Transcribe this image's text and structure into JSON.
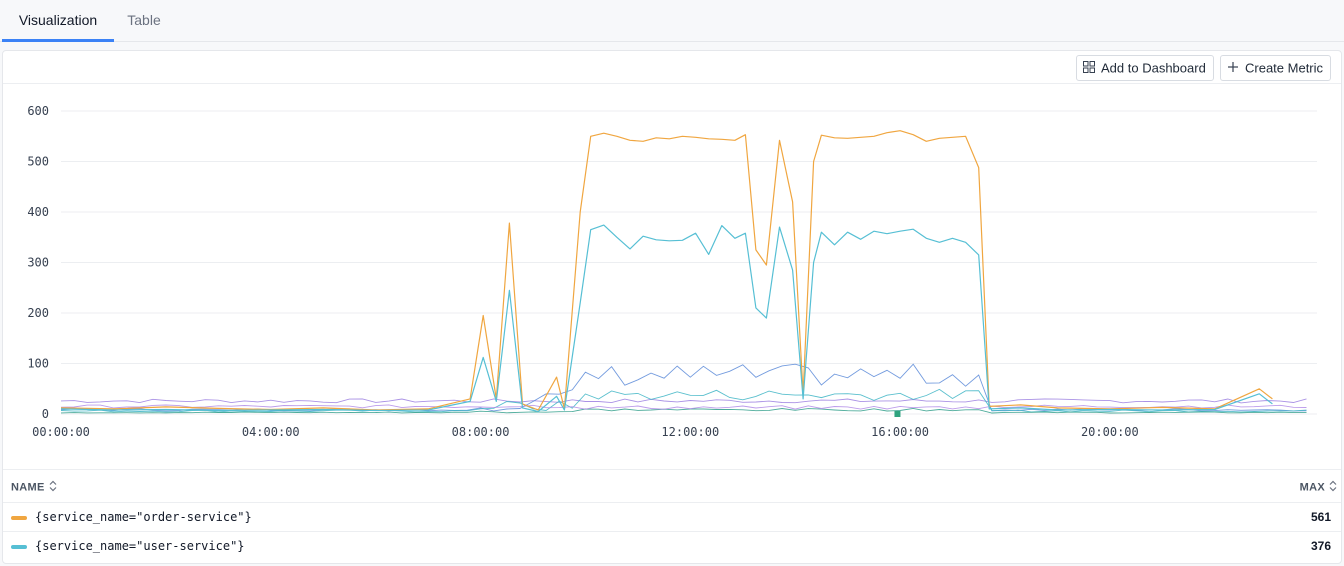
{
  "tabs": [
    {
      "label": "Visualization",
      "active": true
    },
    {
      "label": "Table",
      "active": false
    }
  ],
  "toolbar": {
    "add_dashboard_label": "Add to Dashboard",
    "add_dashboard_icon": "dashboard-grid-icon",
    "create_metric_label": "Create Metric",
    "create_metric_icon": "plus-icon"
  },
  "chart_data": {
    "type": "line",
    "title": "",
    "xlabel": "",
    "ylabel": "",
    "ylim": [
      0,
      600
    ],
    "xlim": [
      0,
      23.95
    ],
    "grid": true,
    "yticks": [
      {
        "v": 0,
        "label": "0"
      },
      {
        "v": 100,
        "label": "100"
      },
      {
        "v": 200,
        "label": "200"
      },
      {
        "v": 300,
        "label": "300"
      },
      {
        "v": 400,
        "label": "400"
      },
      {
        "v": 500,
        "label": "500"
      },
      {
        "v": 600,
        "label": "600"
      }
    ],
    "xticks": [
      {
        "v": 0,
        "label": "00:00:00"
      },
      {
        "v": 4,
        "label": "04:00:00"
      },
      {
        "v": 8,
        "label": "08:00:00"
      },
      {
        "v": 12,
        "label": "12:00:00"
      },
      {
        "v": 16,
        "label": "16:00:00"
      },
      {
        "v": 20,
        "label": "20:00:00"
      }
    ],
    "series": [
      {
        "name": "{service_name=\"order-service\"}",
        "color": "#f0a640",
        "width": 1.2,
        "max": "561",
        "points": [
          [
            0,
            12
          ],
          [
            1,
            10
          ],
          [
            2,
            14
          ],
          [
            3,
            11
          ],
          [
            4,
            9
          ],
          [
            5,
            12
          ],
          [
            6,
            8
          ],
          [
            7,
            10
          ],
          [
            7.8,
            30
          ],
          [
            8.05,
            195
          ],
          [
            8.3,
            30
          ],
          [
            8.55,
            378
          ],
          [
            8.8,
            20
          ],
          [
            9.1,
            8
          ],
          [
            9.45,
            73
          ],
          [
            9.6,
            10
          ],
          [
            9.9,
            400
          ],
          [
            10.1,
            550
          ],
          [
            10.35,
            556
          ],
          [
            10.6,
            550
          ],
          [
            10.85,
            542
          ],
          [
            11.1,
            540
          ],
          [
            11.35,
            547
          ],
          [
            11.6,
            545
          ],
          [
            11.85,
            550
          ],
          [
            12.1,
            548
          ],
          [
            12.35,
            545
          ],
          [
            12.6,
            544
          ],
          [
            12.85,
            542
          ],
          [
            13.05,
            553
          ],
          [
            13.25,
            325
          ],
          [
            13.45,
            295
          ],
          [
            13.7,
            542
          ],
          [
            13.95,
            420
          ],
          [
            14.15,
            40
          ],
          [
            14.35,
            500
          ],
          [
            14.5,
            552
          ],
          [
            14.75,
            547
          ],
          [
            15.0,
            546
          ],
          [
            15.25,
            548
          ],
          [
            15.5,
            550
          ],
          [
            15.75,
            557
          ],
          [
            16.0,
            561
          ],
          [
            16.25,
            553
          ],
          [
            16.5,
            540
          ],
          [
            16.75,
            546
          ],
          [
            17.0,
            548
          ],
          [
            17.25,
            550
          ],
          [
            17.5,
            488
          ],
          [
            17.7,
            15
          ],
          [
            18.3,
            18
          ],
          [
            19,
            12
          ],
          [
            20,
            10
          ],
          [
            21,
            13
          ],
          [
            22,
            10
          ],
          [
            22.85,
            50
          ],
          [
            23.1,
            30
          ]
        ]
      },
      {
        "name": "{service_name=\"user-service\"}",
        "color": "#56bfd4",
        "width": 1.2,
        "max": "376",
        "points": [
          [
            0,
            10
          ],
          [
            1,
            8
          ],
          [
            2,
            9
          ],
          [
            3,
            7
          ],
          [
            4,
            8
          ],
          [
            5,
            9
          ],
          [
            6,
            7
          ],
          [
            7,
            8
          ],
          [
            7.8,
            25
          ],
          [
            8.05,
            112
          ],
          [
            8.3,
            25
          ],
          [
            8.55,
            245
          ],
          [
            8.8,
            12
          ],
          [
            9.1,
            5
          ],
          [
            9.45,
            35
          ],
          [
            9.6,
            8
          ],
          [
            9.9,
            220
          ],
          [
            10.1,
            365
          ],
          [
            10.35,
            374
          ],
          [
            10.6,
            350
          ],
          [
            10.85,
            327
          ],
          [
            11.1,
            352
          ],
          [
            11.35,
            345
          ],
          [
            11.6,
            343
          ],
          [
            11.85,
            344
          ],
          [
            12.1,
            358
          ],
          [
            12.35,
            316
          ],
          [
            12.6,
            373
          ],
          [
            12.85,
            348
          ],
          [
            13.05,
            358
          ],
          [
            13.25,
            210
          ],
          [
            13.45,
            190
          ],
          [
            13.7,
            370
          ],
          [
            13.95,
            285
          ],
          [
            14.15,
            30
          ],
          [
            14.35,
            300
          ],
          [
            14.5,
            360
          ],
          [
            14.75,
            335
          ],
          [
            15.0,
            360
          ],
          [
            15.25,
            346
          ],
          [
            15.5,
            362
          ],
          [
            15.75,
            357
          ],
          [
            16.0,
            362
          ],
          [
            16.25,
            366
          ],
          [
            16.5,
            348
          ],
          [
            16.75,
            340
          ],
          [
            17.0,
            348
          ],
          [
            17.25,
            340
          ],
          [
            17.5,
            315
          ],
          [
            17.7,
            10
          ],
          [
            18.3,
            12
          ],
          [
            19,
            8
          ],
          [
            20,
            9
          ],
          [
            21,
            8
          ],
          [
            22,
            9
          ],
          [
            22.85,
            40
          ],
          [
            23.1,
            20
          ]
        ]
      }
    ]
  },
  "legend": {
    "name_header": "NAME",
    "max_header": "MAX",
    "sort_icon": "sort-arrows-icon",
    "rows": [
      {
        "name": "{service_name=\"order-service\"}",
        "max": "561",
        "color": "#f0a640"
      },
      {
        "name": "{service_name=\"user-service\"}",
        "max": "376",
        "color": "#56bfd4"
      }
    ]
  }
}
